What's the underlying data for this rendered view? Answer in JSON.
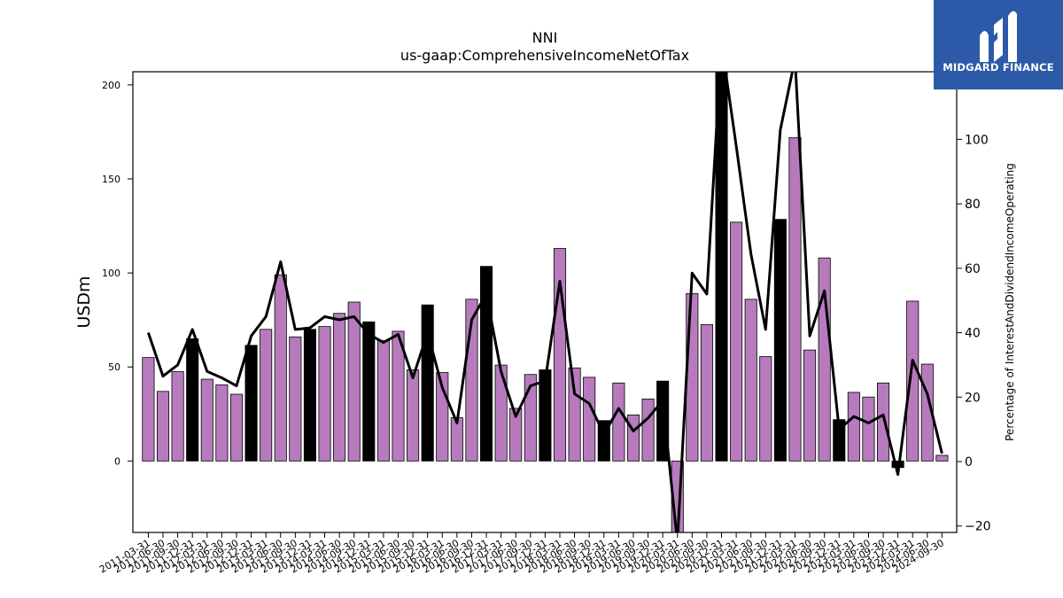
{
  "chart_data": {
    "type": "bar",
    "title": "NNI",
    "subtitle": "us-gaap:ComprehensiveIncomeNetOfTax",
    "ylabel": "USDm",
    "y2label": "Percentage of InterestAndDividendIncomeOperating",
    "ylim": [
      -38,
      207
    ],
    "y2lim": [
      -22,
      121
    ],
    "yticks": [
      0,
      50,
      100,
      150,
      200
    ],
    "y2ticks": [
      -20,
      0,
      20,
      40,
      60,
      80,
      100
    ],
    "categories": [
      "2011-03-31",
      "2011-06-30",
      "2011-09-30",
      "2011-12-31",
      "2012-03-31",
      "2012-06-30",
      "2012-09-30",
      "2012-12-31",
      "2013-03-31",
      "2013-06-30",
      "2013-09-30",
      "2013-12-31",
      "2014-03-31",
      "2014-06-30",
      "2014-09-30",
      "2014-12-31",
      "2015-03-31",
      "2015-06-30",
      "2015-09-30",
      "2015-12-31",
      "2016-03-31",
      "2016-06-30",
      "2016-09-30",
      "2016-12-31",
      "2017-03-31",
      "2017-06-30",
      "2017-09-30",
      "2017-12-31",
      "2018-03-31",
      "2018-06-30",
      "2018-09-30",
      "2018-12-31",
      "2019-03-31",
      "2019-06-30",
      "2019-09-30",
      "2019-12-31",
      "2020-03-31",
      "2020-06-30",
      "2020-09-30",
      "2020-12-31",
      "2021-03-31",
      "2021-06-30",
      "2021-09-30",
      "2021-12-31",
      "2022-03-31",
      "2022-06-30",
      "2022-09-30",
      "2022-12-31",
      "2023-03-31",
      "2023-06-30",
      "2023-09-30",
      "2023-12-31",
      "2024-03-31",
      "2024-06-30",
      "2024-09-30"
    ],
    "values": [
      55,
      37,
      47.5,
      65,
      43.5,
      40.5,
      35.5,
      61.5,
      70,
      99,
      66,
      70,
      71.5,
      78.5,
      84.5,
      74,
      64,
      69,
      48.5,
      83,
      47,
      23,
      86,
      103.5,
      51,
      28,
      46,
      48.5,
      113,
      49.5,
      44.5,
      21.5,
      41.5,
      24.5,
      33,
      42.5,
      -40,
      89,
      72.5,
      207,
      127,
      86,
      55.5,
      128.5,
      172,
      59,
      108,
      22,
      36.5,
      34,
      41.5,
      -3.5,
      85,
      51.5,
      3
    ],
    "highlight": [
      false,
      false,
      false,
      true,
      false,
      false,
      false,
      true,
      false,
      false,
      false,
      true,
      false,
      false,
      false,
      true,
      false,
      false,
      false,
      true,
      false,
      false,
      false,
      true,
      false,
      false,
      false,
      true,
      false,
      false,
      false,
      true,
      false,
      false,
      false,
      true,
      false,
      false,
      false,
      true,
      false,
      false,
      false,
      true,
      false,
      false,
      false,
      true,
      false,
      false,
      false,
      true,
      false,
      false,
      false
    ],
    "line_values": [
      40,
      26.5,
      30,
      41,
      28,
      26,
      23.5,
      39,
      45,
      62,
      41,
      41.5,
      45,
      44,
      45,
      39.5,
      37,
      39.5,
      26,
      40,
      23,
      12,
      44,
      52,
      28,
      14,
      23.5,
      25,
      56,
      21,
      18,
      8.5,
      16.5,
      9.5,
      13.5,
      19,
      -25,
      58.5,
      52,
      130,
      98,
      64.5,
      41,
      103,
      125,
      39,
      53,
      10,
      14,
      12,
      14.5,
      -4,
      31.5,
      21,
      2.5
    ],
    "colors": {
      "bar": "#b77bbd",
      "highlight_bar": "#000000",
      "line": "#000000"
    }
  },
  "logo": {
    "text": "MIDGARD FINANCE",
    "color": "#2c5aa8"
  }
}
